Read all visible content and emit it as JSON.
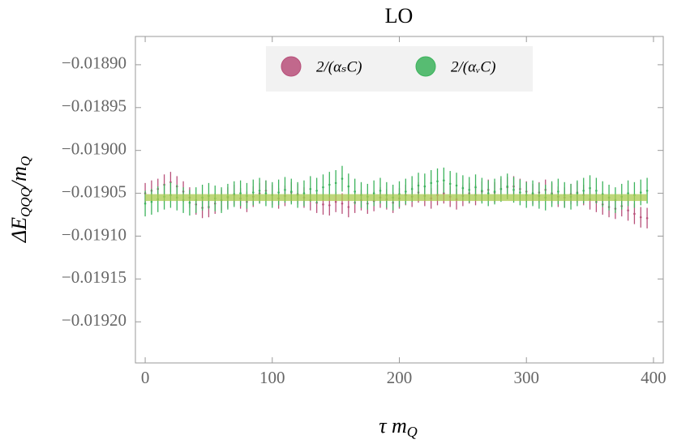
{
  "chart_data": {
    "type": "errorbar",
    "title": "LO",
    "xlabel": [
      "τ m",
      "Q"
    ],
    "ylabel": [
      "ΔE",
      "QQQ",
      "/m",
      "Q"
    ],
    "xlim": [
      -7.7,
      407.7
    ],
    "ylim": [
      -0.019248,
      -0.018867
    ],
    "xticks": [
      0,
      100,
      200,
      300,
      400
    ],
    "yticks": [
      {
        "value": -0.0189,
        "label": "−0.01890"
      },
      {
        "value": -0.01895,
        "label": "−0.01895"
      },
      {
        "value": -0.019,
        "label": "−0.01900"
      },
      {
        "value": -0.01905,
        "label": "−0.01905"
      },
      {
        "value": -0.0191,
        "label": "−0.01910"
      },
      {
        "value": -0.01915,
        "label": "−0.01915"
      },
      {
        "value": -0.0192,
        "label": "−0.01920"
      }
    ],
    "legend": "top",
    "band": {
      "center": -0.019055,
      "half_width": 4e-06,
      "color": "#a9c94f"
    },
    "x": [
      0,
      5,
      10,
      15,
      20,
      25,
      30,
      35,
      40,
      45,
      50,
      55,
      60,
      65,
      70,
      75,
      80,
      85,
      90,
      95,
      100,
      105,
      110,
      115,
      120,
      125,
      130,
      135,
      140,
      145,
      150,
      155,
      160,
      165,
      170,
      175,
      180,
      185,
      190,
      195,
      200,
      205,
      210,
      215,
      220,
      225,
      230,
      235,
      240,
      245,
      250,
      255,
      260,
      265,
      270,
      275,
      280,
      285,
      290,
      295,
      300,
      305,
      310,
      315,
      320,
      325,
      330,
      335,
      340,
      345,
      350,
      355,
      360,
      365,
      370,
      375,
      380,
      385,
      390,
      395
    ],
    "series": [
      {
        "name": "2/(αₛC)",
        "color": "#b8507a",
        "error": 1.2e-05,
        "values": [
          -0.01905,
          -0.019047,
          -0.019045,
          -0.01904,
          -0.019037,
          -0.019042,
          -0.019048,
          -0.019055,
          -0.019063,
          -0.019067,
          -0.019066,
          -0.019062,
          -0.019058,
          -0.019055,
          -0.019052,
          -0.019056,
          -0.01906,
          -0.019054,
          -0.01905,
          -0.019047,
          -0.019052,
          -0.019056,
          -0.019053,
          -0.019049,
          -0.019051,
          -0.019055,
          -0.019058,
          -0.019061,
          -0.019063,
          -0.019064,
          -0.01906,
          -0.019062,
          -0.019066,
          -0.019061,
          -0.019058,
          -0.019062,
          -0.019059,
          -0.019055,
          -0.019057,
          -0.019061,
          -0.019056,
          -0.019052,
          -0.019054,
          -0.019049,
          -0.019053,
          -0.019056,
          -0.019052,
          -0.01905,
          -0.019054,
          -0.019057,
          -0.019053,
          -0.01905,
          -0.019052,
          -0.019048,
          -0.019046,
          -0.019049,
          -0.019045,
          -0.019043,
          -0.019042,
          -0.019045,
          -0.019048,
          -0.019051,
          -0.019049,
          -0.019046,
          -0.01905,
          -0.019054,
          -0.019055,
          -0.019051,
          -0.019049,
          -0.019052,
          -0.019057,
          -0.01906,
          -0.019063,
          -0.019066,
          -0.019068,
          -0.019065,
          -0.01907,
          -0.019074,
          -0.019078,
          -0.019079
        ]
      },
      {
        "name": "2/(αᵥC)",
        "color": "#3cb35c",
        "error": 1.5e-05,
        "values": [
          -0.019062,
          -0.01906,
          -0.019057,
          -0.019054,
          -0.019052,
          -0.019055,
          -0.019058,
          -0.019061,
          -0.019058,
          -0.019055,
          -0.019053,
          -0.019056,
          -0.019058,
          -0.019054,
          -0.019051,
          -0.01905,
          -0.019053,
          -0.019049,
          -0.019047,
          -0.01905,
          -0.019052,
          -0.019049,
          -0.019046,
          -0.019048,
          -0.019052,
          -0.01905,
          -0.019045,
          -0.019047,
          -0.019043,
          -0.01904,
          -0.019038,
          -0.019033,
          -0.019042,
          -0.019048,
          -0.019052,
          -0.019054,
          -0.01905,
          -0.019047,
          -0.019052,
          -0.019055,
          -0.019051,
          -0.019048,
          -0.019045,
          -0.019041,
          -0.019042,
          -0.019038,
          -0.019036,
          -0.019035,
          -0.019039,
          -0.019041,
          -0.019044,
          -0.019046,
          -0.019043,
          -0.019047,
          -0.01905,
          -0.019048,
          -0.019045,
          -0.019042,
          -0.019046,
          -0.019049,
          -0.019052,
          -0.01905,
          -0.019053,
          -0.019055,
          -0.019051,
          -0.019048,
          -0.019052,
          -0.019054,
          -0.01905,
          -0.019047,
          -0.019044,
          -0.019047,
          -0.019051,
          -0.019055,
          -0.019058,
          -0.019054,
          -0.01905,
          -0.019052,
          -0.019049,
          -0.019047
        ]
      }
    ]
  }
}
